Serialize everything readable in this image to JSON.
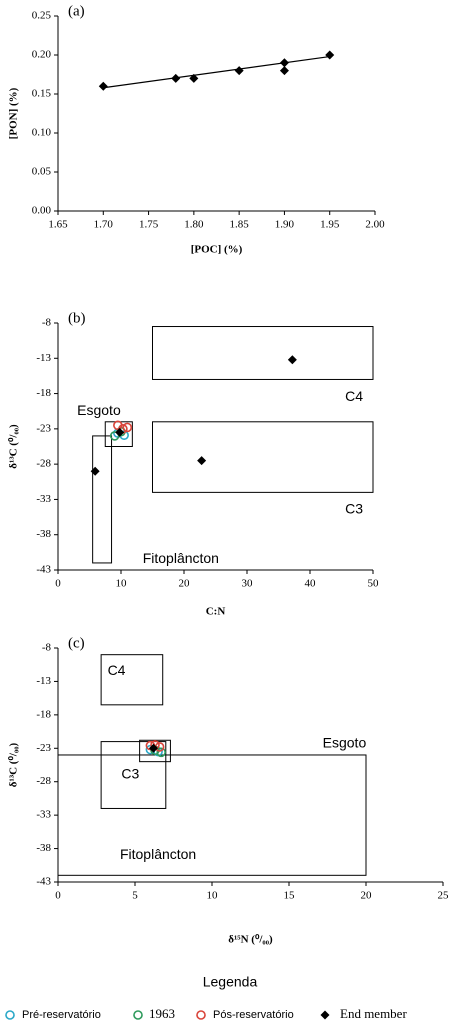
{
  "chart_data": [
    {
      "type": "scatter",
      "panel_label": "(a)",
      "xlabel": "[POC] (%)",
      "ylabel": "[PON] (%)",
      "xlim": [
        1.65,
        2.0
      ],
      "xticks": [
        1.65,
        {
          "value": 1.7,
          "label": "1.70"
        },
        1.75,
        {
          "value": 1.8,
          "label": "1.80"
        },
        1.85,
        {
          "value": 1.9,
          "label": "1.90"
        },
        1.95,
        {
          "value": 2.0,
          "label": "2.00"
        }
      ],
      "ylim": [
        0,
        0.25
      ],
      "yticks": [
        {
          "value": 0,
          "label": "0.00"
        },
        0.05,
        {
          "value": 0.1,
          "label": "0.10"
        },
        0.15,
        {
          "value": 0.2,
          "label": "0.20"
        },
        0.25
      ],
      "series": [
        {
          "color": "#000000",
          "marker": "diamond",
          "x": [
            1.7,
            1.78,
            1.8,
            1.85,
            1.9,
            1.9,
            1.95
          ],
          "values": [
            0.16,
            0.17,
            0.17,
            0.18,
            0.19,
            0.18,
            0.2
          ]
        }
      ],
      "trendline": {
        "x": [
          1.7,
          1.95
        ],
        "y": [
          0.158,
          0.198
        ]
      }
    },
    {
      "type": "scatter",
      "panel_label": "(b)",
      "xlabel": "C:N",
      "ylabel": "δ¹³C (⁰/₀₀)",
      "xlim": [
        0,
        50
      ],
      "xticks": [
        0,
        10,
        20,
        30,
        40,
        50
      ],
      "ylim": [
        -43,
        -8
      ],
      "yticks": [
        -43,
        -38,
        -33,
        -28,
        -23,
        -18,
        -13,
        -8
      ],
      "regions": [
        {
          "x": [
            15,
            50
          ],
          "y": [
            -16,
            -8.5
          ]
        },
        {
          "x": [
            15,
            50
          ],
          "y": [
            -32,
            -22
          ]
        },
        {
          "x": [
            7.5,
            11.8
          ],
          "y": [
            -25.5,
            -22
          ]
        },
        {
          "x": [
            5.5,
            8.5
          ],
          "y": [
            -42,
            -24
          ]
        }
      ],
      "annotations": [
        {
          "text": "C4",
          "x": 47,
          "y": -18.5
        },
        {
          "text": "C3",
          "x": 47,
          "y": -34.5
        },
        {
          "text": "Esgoto",
          "x": 6.5,
          "y": -20.5
        },
        {
          "text": "Fitoplâncton",
          "x": 19.5,
          "y": -41.5
        }
      ],
      "series": [
        {
          "name": "Pré-reservatório",
          "color": "#2aa8c8",
          "marker": "circle",
          "x": [
            9.5,
            10.5
          ],
          "values": [
            -23.6,
            -23.9
          ]
        },
        {
          "name": "1963",
          "color": "#2e9a5c",
          "marker": "circle",
          "x": [
            9,
            10
          ],
          "values": [
            -24,
            -23.4
          ]
        },
        {
          "name": "Pós-reservatório",
          "color": "#d9443a",
          "marker": "circle",
          "x": [
            9.5,
            11,
            10.3
          ],
          "values": [
            -22.5,
            -22.8,
            -23
          ]
        },
        {
          "name": "End member",
          "color": "#000000",
          "marker": "diamond",
          "x": [
            37.2,
            22.8,
            5.9,
            9.8
          ],
          "values": [
            -13.2,
            -27.5,
            -29,
            -23.5
          ]
        }
      ]
    },
    {
      "type": "scatter",
      "panel_label": "(c)",
      "xlabel": "δ¹⁵N (⁰/₀₀)",
      "ylabel": "δ¹³C (⁰/₀₀)",
      "xlim": [
        0,
        25
      ],
      "xticks": [
        0,
        5,
        10,
        15,
        20,
        25
      ],
      "ylim": [
        -43,
        -8
      ],
      "yticks": [
        -43,
        -38,
        -33,
        -28,
        -23,
        -18,
        -13,
        -8
      ],
      "regions": [
        {
          "x": [
            2.8,
            6.8
          ],
          "y": [
            -16.5,
            -9
          ]
        },
        {
          "x": [
            2.8,
            7
          ],
          "y": [
            -32,
            -22
          ]
        },
        {
          "x": [
            5.3,
            7.3
          ],
          "y": [
            -25,
            -21.8
          ]
        },
        {
          "x": [
            0,
            20
          ],
          "y": [
            -42,
            -24
          ]
        }
      ],
      "annotations": [
        {
          "text": "C4",
          "x": 3.8,
          "y": -11.5
        },
        {
          "text": "C3",
          "x": 4.7,
          "y": -27
        },
        {
          "text": "Esgoto",
          "x": 18.6,
          "y": -22.3
        },
        {
          "text": "Fitoplâncton",
          "x": 6.5,
          "y": -39
        }
      ],
      "series": [
        {
          "name": "Pré-reservatório",
          "color": "#2aa8c8",
          "marker": "circle",
          "x": [
            6,
            6.5
          ],
          "values": [
            -23.2,
            -23.5
          ]
        },
        {
          "name": "1963",
          "color": "#2e9a5c",
          "marker": "circle",
          "x": [
            6.3,
            6.7
          ],
          "values": [
            -23.3,
            -23.6
          ]
        },
        {
          "name": "Pós-reservatório",
          "color": "#d9443a",
          "marker": "circle",
          "x": [
            6,
            6.6,
            6.3
          ],
          "values": [
            -22.6,
            -22.8,
            -22.5
          ]
        },
        {
          "name": "End member",
          "color": "#000000",
          "marker": "diamond",
          "x": [
            6.2
          ],
          "values": [
            -23
          ]
        }
      ]
    }
  ],
  "legend_title": "Legenda"
}
